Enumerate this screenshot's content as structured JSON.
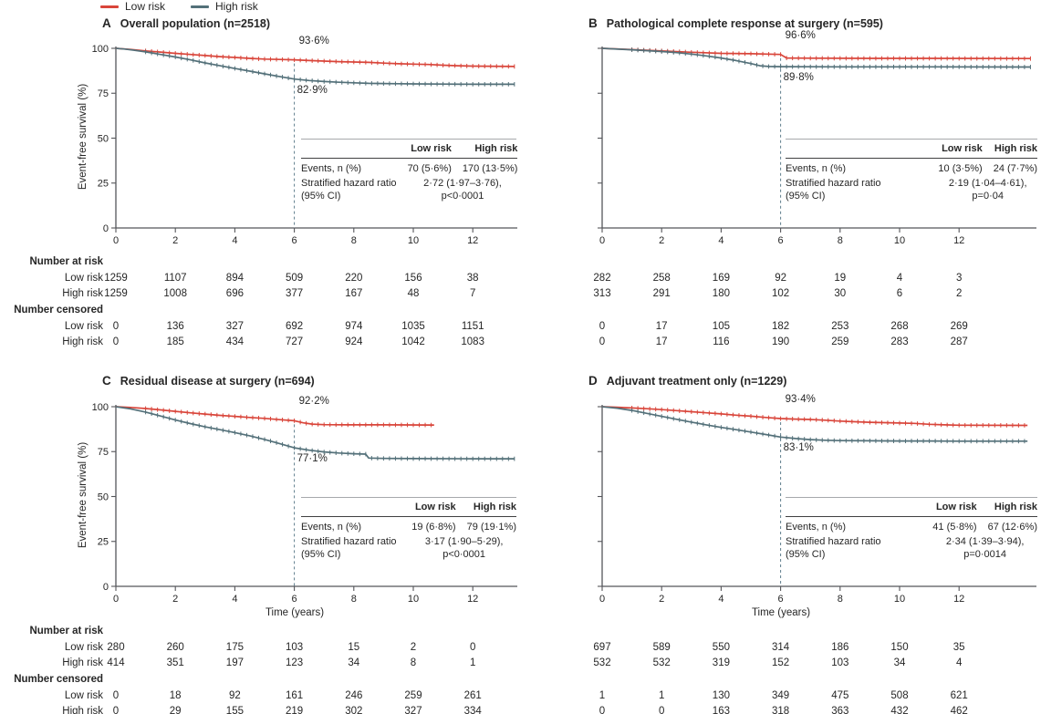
{
  "legend": {
    "items": [
      {
        "label": "Low risk",
        "color": "#d9453a"
      },
      {
        "label": "High risk",
        "color": "#537079"
      }
    ]
  },
  "axes": {
    "y_label": "Event-free survival (%)",
    "x_label": "Time (years)",
    "x_ticks": [
      0,
      2,
      4,
      6,
      8,
      10,
      12
    ],
    "y_ticks": [
      100,
      75,
      50,
      25,
      0
    ],
    "x_range": [
      0,
      14.6
    ],
    "y_range": [
      0,
      100
    ]
  },
  "risk_labels": {
    "number_at_risk": "Number at risk",
    "number_censored": "Number censored",
    "low": "Low risk",
    "high": "High risk"
  },
  "colors": {
    "low_risk": "#d9453a",
    "high_risk": "#537079",
    "dashed_ref": "#5f7d8c",
    "axis": "#55565a",
    "text": "#262626"
  },
  "chart_data": [
    {
      "type": "line",
      "letter": "A",
      "title": "Overall population (n=2518)",
      "annotations": {
        "low_risk": "93·6%",
        "high_risk": "82·9%",
        "at_time": 6
      },
      "series": [
        {
          "name": "Low risk",
          "color": "#d9453a",
          "points": [
            [
              0,
              100
            ],
            [
              0.5,
              99.4
            ],
            [
              1,
              98.6
            ],
            [
              1.5,
              97.9
            ],
            [
              2,
              97.2
            ],
            [
              2.5,
              96.6
            ],
            [
              3,
              96.0
            ],
            [
              3.5,
              95.4
            ],
            [
              4,
              94.9
            ],
            [
              4.5,
              94.4
            ],
            [
              5,
              94.0
            ],
            [
              5.5,
              93.8
            ],
            [
              6,
              93.6
            ],
            [
              6.5,
              93.2
            ],
            [
              7,
              92.9
            ],
            [
              7.5,
              92.6
            ],
            [
              8,
              92.4
            ],
            [
              8.5,
              92.2
            ],
            [
              9,
              91.8
            ],
            [
              9.5,
              91.4
            ],
            [
              10,
              91.2
            ],
            [
              10.5,
              91.0
            ],
            [
              11,
              90.6
            ],
            [
              11.5,
              90.3
            ],
            [
              12,
              90.1
            ],
            [
              13.4,
              89.9
            ]
          ]
        },
        {
          "name": "High risk",
          "color": "#537079",
          "points": [
            [
              0,
              100
            ],
            [
              0.3,
              99.6
            ],
            [
              0.6,
              99.0
            ],
            [
              1,
              98.0
            ],
            [
              1.5,
              96.6
            ],
            [
              2,
              95.2
            ],
            [
              2.5,
              93.6
            ],
            [
              3,
              91.9
            ],
            [
              3.5,
              90.3
            ],
            [
              4,
              88.8
            ],
            [
              4.5,
              87.3
            ],
            [
              5,
              85.8
            ],
            [
              5.5,
              84.3
            ],
            [
              6,
              82.9
            ],
            [
              6.5,
              82.1
            ],
            [
              7,
              81.5
            ],
            [
              7.5,
              81.1
            ],
            [
              8,
              80.8
            ],
            [
              8.5,
              80.5
            ],
            [
              9,
              80.4
            ],
            [
              9.5,
              80.3
            ],
            [
              10,
              80.2
            ],
            [
              11,
              80.1
            ],
            [
              12,
              80.0
            ],
            [
              13.4,
              80.0
            ]
          ]
        }
      ],
      "inset": {
        "headers": [
          "Low risk",
          "High risk"
        ],
        "events_label": "Events, n (%)",
        "events": [
          "70 (5·6%)",
          "170 (13·5%)"
        ],
        "hr_label_lines": [
          "Stratified hazard ratio",
          "(95% CI)"
        ],
        "hr_value_lines": [
          "2·72 (1·97–3·76),",
          "p<0·0001"
        ]
      },
      "number_at_risk": {
        "low_risk": [
          1259,
          1107,
          894,
          509,
          220,
          156,
          38
        ],
        "high_risk": [
          1259,
          1008,
          696,
          377,
          167,
          48,
          7
        ]
      },
      "number_censored": {
        "low_risk": [
          0,
          136,
          327,
          692,
          974,
          1035,
          1151
        ],
        "high_risk": [
          0,
          185,
          434,
          727,
          924,
          1042,
          1083
        ]
      }
    },
    {
      "type": "line",
      "letter": "B",
      "title": "Pathological complete response at surgery (n=595)",
      "annotations": {
        "low_risk": "96·6%",
        "high_risk": "89·8%",
        "at_time": 6
      },
      "series": [
        {
          "name": "Low risk",
          "color": "#d9453a",
          "points": [
            [
              0,
              100
            ],
            [
              1,
              99.3
            ],
            [
              2,
              98.6
            ],
            [
              3,
              97.8
            ],
            [
              4,
              97.2
            ],
            [
              5,
              97.0
            ],
            [
              6,
              96.6
            ],
            [
              6.2,
              94.6
            ],
            [
              7,
              94.5
            ],
            [
              9,
              94.4
            ],
            [
              11,
              94.4
            ],
            [
              14.4,
              94.3
            ]
          ]
        },
        {
          "name": "High risk",
          "color": "#537079",
          "points": [
            [
              0,
              100
            ],
            [
              1,
              99.2
            ],
            [
              2,
              98.2
            ],
            [
              2.5,
              97.6
            ],
            [
              3,
              96.8
            ],
            [
              3.5,
              95.8
            ],
            [
              4,
              94.6
            ],
            [
              4.5,
              93.2
            ],
            [
              5,
              91.5
            ],
            [
              5.3,
              90.3
            ],
            [
              5.6,
              89.9
            ],
            [
              6,
              89.8
            ],
            [
              8,
              89.7
            ],
            [
              11,
              89.7
            ],
            [
              14.4,
              89.6
            ]
          ]
        }
      ],
      "inset": {
        "headers": [
          "Low risk",
          "High risk"
        ],
        "events_label": "Events, n (%)",
        "events": [
          "10 (3·5%)",
          "24 (7·7%)"
        ],
        "hr_label_lines": [
          "Stratified hazard ratio",
          "(95% CI)"
        ],
        "hr_value_lines": [
          "2·19 (1·04–4·61),",
          "p=0·04"
        ]
      },
      "number_at_risk": {
        "low_risk": [
          282,
          258,
          169,
          92,
          19,
          4,
          3
        ],
        "high_risk": [
          313,
          291,
          180,
          102,
          30,
          6,
          2
        ]
      },
      "number_censored": {
        "low_risk": [
          0,
          17,
          105,
          182,
          253,
          268,
          269
        ],
        "high_risk": [
          0,
          17,
          116,
          190,
          259,
          283,
          287
        ]
      }
    },
    {
      "type": "line",
      "letter": "C",
      "title": "Residual disease at surgery (n=694)",
      "annotations": {
        "low_risk": "92·2%",
        "high_risk": "77·1%",
        "at_time": 6
      },
      "series": [
        {
          "name": "Low risk",
          "color": "#d9453a",
          "points": [
            [
              0,
              100
            ],
            [
              0.5,
              99.6
            ],
            [
              1,
              99.0
            ],
            [
              1.5,
              98.2
            ],
            [
              2,
              97.4
            ],
            [
              2.5,
              96.6
            ],
            [
              3,
              95.9
            ],
            [
              3.5,
              95.2
            ],
            [
              4,
              94.6
            ],
            [
              4.5,
              94.0
            ],
            [
              5,
              93.5
            ],
            [
              5.5,
              92.8
            ],
            [
              6,
              92.2
            ],
            [
              6.3,
              91.0
            ],
            [
              6.6,
              90.3
            ],
            [
              7,
              90.0
            ],
            [
              8,
              89.9
            ],
            [
              9,
              89.9
            ],
            [
              10.7,
              89.8
            ]
          ]
        },
        {
          "name": "High risk",
          "color": "#537079",
          "points": [
            [
              0,
              100
            ],
            [
              0.5,
              98.8
            ],
            [
              1,
              97.0
            ],
            [
              1.5,
              94.8
            ],
            [
              2,
              92.6
            ],
            [
              2.5,
              90.6
            ],
            [
              3,
              88.8
            ],
            [
              3.5,
              87.2
            ],
            [
              4,
              85.6
            ],
            [
              4.5,
              83.8
            ],
            [
              5,
              81.8
            ],
            [
              5.5,
              79.5
            ],
            [
              6,
              77.1
            ],
            [
              6.5,
              75.8
            ],
            [
              7,
              74.8
            ],
            [
              7.5,
              74.2
            ],
            [
              8,
              73.8
            ],
            [
              8.4,
              73.6
            ],
            [
              8.5,
              71.4
            ],
            [
              9,
              71.2
            ],
            [
              10,
              71.1
            ],
            [
              12,
              71.0
            ],
            [
              13.4,
              71.0
            ]
          ]
        }
      ],
      "inset": {
        "headers": [
          "Low risk",
          "High risk"
        ],
        "events_label": "Events, n (%)",
        "events": [
          "19 (6·8%)",
          "79 (19·1%)"
        ],
        "hr_label_lines": [
          "Stratified hazard ratio",
          "(95% CI)"
        ],
        "hr_value_lines": [
          "3·17 (1·90–5·29),",
          "p<0·0001"
        ]
      },
      "number_at_risk": {
        "low_risk": [
          280,
          260,
          175,
          103,
          15,
          2,
          0
        ],
        "high_risk": [
          414,
          351,
          197,
          123,
          34,
          8,
          1
        ]
      },
      "number_censored": {
        "low_risk": [
          0,
          18,
          92,
          161,
          246,
          259,
          261
        ],
        "high_risk": [
          0,
          29,
          155,
          219,
          302,
          327,
          334
        ]
      }
    },
    {
      "type": "line",
      "letter": "D",
      "title": "Adjuvant treatment only (n=1229)",
      "annotations": {
        "low_risk": "93·4%",
        "high_risk": "83·1%",
        "at_time": 6
      },
      "series": [
        {
          "name": "Low risk",
          "color": "#d9453a",
          "points": [
            [
              0,
              100
            ],
            [
              0.5,
              99.7
            ],
            [
              1,
              99.3
            ],
            [
              1.5,
              98.9
            ],
            [
              2,
              98.4
            ],
            [
              2.5,
              97.8
            ],
            [
              3,
              97.2
            ],
            [
              3.5,
              96.6
            ],
            [
              4,
              96.0
            ],
            [
              4.5,
              95.3
            ],
            [
              5,
              94.7
            ],
            [
              5.5,
              94.0
            ],
            [
              6,
              93.4
            ],
            [
              6.5,
              93.1
            ],
            [
              7,
              92.9
            ],
            [
              7.5,
              92.5
            ],
            [
              8,
              92.0
            ],
            [
              8.5,
              91.6
            ],
            [
              9,
              91.3
            ],
            [
              9.5,
              91.1
            ],
            [
              10,
              90.9
            ],
            [
              10.5,
              90.7
            ],
            [
              11,
              90.2
            ],
            [
              11.5,
              89.9
            ],
            [
              12,
              89.7
            ],
            [
              14.3,
              89.6
            ]
          ]
        },
        {
          "name": "High risk",
          "color": "#537079",
          "points": [
            [
              0,
              100
            ],
            [
              0.5,
              99.2
            ],
            [
              1,
              97.9
            ],
            [
              1.5,
              96.3
            ],
            [
              2,
              94.6
            ],
            [
              2.5,
              93.0
            ],
            [
              3,
              91.4
            ],
            [
              3.5,
              89.9
            ],
            [
              4,
              88.5
            ],
            [
              4.5,
              87.2
            ],
            [
              5,
              85.9
            ],
            [
              5.5,
              84.5
            ],
            [
              6,
              83.1
            ],
            [
              6.5,
              82.3
            ],
            [
              7,
              81.7
            ],
            [
              7.5,
              81.3
            ],
            [
              8,
              81.1
            ],
            [
              9,
              81.0
            ],
            [
              10,
              80.9
            ],
            [
              11,
              80.9
            ],
            [
              12,
              80.8
            ],
            [
              14.3,
              80.8
            ]
          ]
        }
      ],
      "inset": {
        "headers": [
          "Low risk",
          "High risk"
        ],
        "events_label": "Events, n (%)",
        "events": [
          "41 (5·8%)",
          "67 (12·6%)"
        ],
        "hr_label_lines": [
          "Stratified hazard ratio",
          "(95% CI)"
        ],
        "hr_value_lines": [
          "2·34 (1·39–3·94),",
          "p=0·0014"
        ]
      },
      "number_at_risk": {
        "low_risk": [
          697,
          589,
          550,
          314,
          186,
          150,
          35
        ],
        "high_risk": [
          532,
          532,
          319,
          152,
          103,
          34,
          4
        ]
      },
      "number_censored": {
        "low_risk": [
          1,
          1,
          130,
          349,
          475,
          508,
          621
        ],
        "high_risk": [
          0,
          0,
          163,
          318,
          363,
          432,
          462
        ]
      }
    }
  ]
}
